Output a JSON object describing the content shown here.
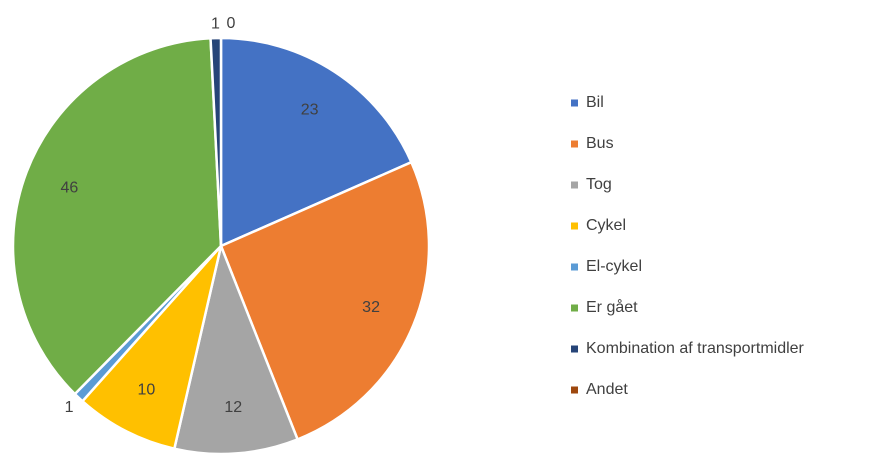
{
  "chart_data": {
    "type": "pie",
    "categories": [
      "Bil",
      "Bus",
      "Tog",
      "Cykel",
      "El-cykel",
      "Er gået",
      "Kombination af transportmidler",
      "Andet"
    ],
    "values": [
      23,
      32,
      12,
      10,
      1,
      46,
      1,
      0
    ],
    "colors": [
      "#4472c4",
      "#ed7d31",
      "#a5a5a5",
      "#ffc000",
      "#5b9bd5",
      "#70ad47",
      "#264478",
      "#9e480e"
    ],
    "legend": "right"
  }
}
